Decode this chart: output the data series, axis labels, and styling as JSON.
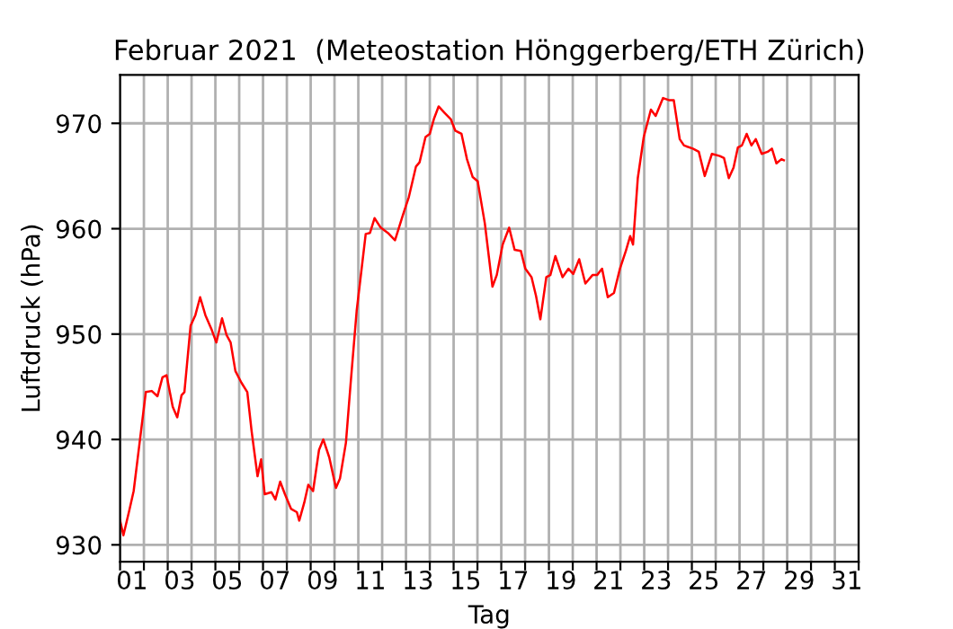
{
  "chart_data": {
    "type": "line",
    "title": "Februar 2021  (Meteostation Hönggerberg/ETH Zürich)",
    "xlabel": "Tag",
    "ylabel": "Luftdruck (hPa)",
    "series": [
      {
        "color": "#ff0000",
        "x": [
          1.0,
          1.14,
          1.4,
          1.57,
          1.82,
          2.08,
          2.33,
          2.57,
          2.78,
          2.95,
          3.21,
          3.4,
          3.58,
          3.7,
          3.96,
          4.16,
          4.36,
          4.58,
          4.83,
          5.04,
          5.28,
          5.47,
          5.64,
          5.84,
          6.09,
          6.34,
          6.52,
          6.77,
          6.92,
          7.07,
          7.35,
          7.52,
          7.72,
          7.92,
          8.18,
          8.42,
          8.52,
          8.73,
          8.9,
          9.1,
          9.35,
          9.53,
          9.78,
          10.06,
          10.23,
          10.48,
          10.68,
          10.93,
          11.31,
          11.49,
          11.68,
          11.94,
          12.24,
          12.54,
          12.87,
          13.12,
          13.42,
          13.57,
          13.82,
          14.0,
          14.17,
          14.37,
          14.62,
          14.88,
          15.07,
          15.33,
          15.56,
          15.8,
          16.01,
          16.31,
          16.63,
          16.81,
          17.06,
          17.33,
          17.56,
          17.82,
          18.01,
          18.27,
          18.46,
          18.64,
          18.89,
          19.06,
          19.27,
          19.57,
          19.82,
          20.02,
          20.27,
          20.53,
          20.83,
          21.02,
          21.23,
          21.47,
          21.73,
          21.98,
          22.23,
          22.41,
          22.53,
          22.73,
          22.98,
          23.28,
          23.48,
          23.79,
          24.03,
          24.24,
          24.49,
          24.67,
          25.04,
          25.29,
          25.54,
          25.84,
          26.17,
          26.35,
          26.55,
          26.75,
          26.93,
          27.1,
          27.3,
          27.5,
          27.68,
          27.93,
          28.18,
          28.36,
          28.55,
          28.76,
          28.86
        ],
        "values": [
          932.3,
          930.9,
          933.4,
          935.1,
          939.7,
          944.5,
          944.6,
          944.1,
          945.9,
          946.1,
          943.1,
          942.1,
          944.2,
          944.5,
          950.8,
          951.8,
          953.5,
          951.8,
          950.5,
          949.2,
          951.5,
          949.9,
          949.2,
          946.5,
          945.4,
          944.5,
          940.8,
          936.5,
          938.1,
          934.8,
          935.0,
          934.3,
          936.0,
          934.8,
          933.4,
          933.1,
          932.3,
          934.0,
          935.7,
          935.1,
          939.0,
          940.0,
          938.3,
          935.4,
          936.3,
          939.7,
          945.4,
          952.2,
          959.5,
          959.6,
          961.0,
          960.1,
          959.6,
          958.9,
          961.3,
          963.0,
          965.9,
          966.3,
          968.7,
          969.0,
          970.4,
          971.6,
          971.0,
          970.4,
          969.3,
          969.0,
          966.6,
          964.9,
          964.5,
          960.5,
          954.5,
          955.6,
          958.5,
          960.1,
          958.0,
          957.9,
          956.2,
          955.4,
          953.6,
          951.4,
          955.4,
          955.6,
          957.4,
          955.4,
          956.2,
          955.7,
          957.1,
          954.8,
          955.6,
          955.6,
          956.2,
          953.5,
          953.9,
          956.2,
          957.9,
          959.3,
          958.5,
          964.8,
          968.7,
          971.3,
          970.7,
          972.4,
          972.2,
          972.2,
          968.5,
          967.9,
          967.6,
          967.3,
          965.0,
          967.1,
          966.9,
          966.7,
          964.8,
          965.8,
          967.7,
          967.9,
          969.0,
          967.9,
          968.5,
          967.1,
          967.3,
          967.6,
          966.2,
          966.6,
          966.5
        ]
      }
    ],
    "xlim": [
      1,
      32
    ],
    "xticks": [
      {
        "value": 1,
        "label": null
      },
      {
        "value": 2,
        "label": null
      },
      {
        "value": 3,
        "label": null
      },
      {
        "value": 4,
        "label": null
      },
      {
        "value": 5,
        "label": null
      },
      {
        "value": 6,
        "label": null
      },
      {
        "value": 7,
        "label": null
      },
      {
        "value": 8,
        "label": null
      },
      {
        "value": 9,
        "label": null
      },
      {
        "value": 10,
        "label": null
      },
      {
        "value": 11,
        "label": null
      },
      {
        "value": 12,
        "label": null
      },
      {
        "value": 13,
        "label": null
      },
      {
        "value": 14,
        "label": null
      },
      {
        "value": 15,
        "label": null
      },
      {
        "value": 16,
        "label": null
      },
      {
        "value": 17,
        "label": null
      },
      {
        "value": 18,
        "label": null
      },
      {
        "value": 19,
        "label": null
      },
      {
        "value": 20,
        "label": null
      },
      {
        "value": 21,
        "label": null
      },
      {
        "value": 22,
        "label": null
      },
      {
        "value": 23,
        "label": null
      },
      {
        "value": 24,
        "label": null
      },
      {
        "value": 25,
        "label": null
      },
      {
        "value": 26,
        "label": null
      },
      {
        "value": 27,
        "label": null
      },
      {
        "value": 28,
        "label": null
      },
      {
        "value": 29,
        "label": null
      },
      {
        "value": 30,
        "label": null
      },
      {
        "value": 31,
        "label": null
      },
      {
        "value": 32,
        "label": null
      },
      {
        "value": 1.5,
        "label": "01"
      },
      {
        "value": 3.5,
        "label": "03"
      },
      {
        "value": 5.5,
        "label": "05"
      },
      {
        "value": 7.5,
        "label": "07"
      },
      {
        "value": 9.5,
        "label": "09"
      },
      {
        "value": 11.5,
        "label": "11"
      },
      {
        "value": 13.5,
        "label": "13"
      },
      {
        "value": 15.5,
        "label": "15"
      },
      {
        "value": 17.5,
        "label": "17"
      },
      {
        "value": 19.5,
        "label": "19"
      },
      {
        "value": 21.5,
        "label": "21"
      },
      {
        "value": 23.5,
        "label": "23"
      },
      {
        "value": 25.5,
        "label": "25"
      },
      {
        "value": 27.5,
        "label": "27"
      },
      {
        "value": 29.5,
        "label": "29"
      },
      {
        "value": 31.5,
        "label": "31"
      }
    ],
    "ylim": [
      928.4,
      974.6
    ],
    "yticks": [
      930,
      940,
      950,
      960,
      970
    ],
    "grid": true,
    "marker": "none",
    "line_style": "solid"
  }
}
